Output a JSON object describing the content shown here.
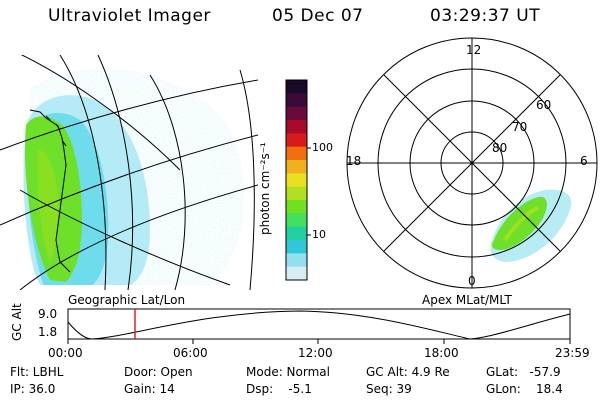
{
  "header": {
    "instrument": "Ultraviolet Imager",
    "date": "05 Dec 07",
    "time": "03:29:37 UT"
  },
  "geo_panel": {
    "label": "Geographic Lat/Lon"
  },
  "colorbar": {
    "unit_label": "photon cm⁻²s⁻¹",
    "ticks": [
      "100",
      "10"
    ],
    "colors": [
      "#1a0a2a",
      "#3a0a3a",
      "#6a0a3a",
      "#a80a2a",
      "#d81a1a",
      "#f07010",
      "#f0b020",
      "#e8e020",
      "#b0e020",
      "#70e020",
      "#40e060",
      "#20d0a0",
      "#30c8d8",
      "#90e0f0",
      "#d8ecf4"
    ]
  },
  "polar_panel": {
    "label": "Apex MLat/MLT",
    "mlt_labels": {
      "top": "12",
      "bottom": "0",
      "left": "18",
      "right": "6"
    },
    "mlat_labels": [
      "60",
      "70",
      "80"
    ]
  },
  "orbit_plot": {
    "ylabel": "GC Alt",
    "yticks": [
      "9.0",
      "1.8"
    ],
    "xticks": [
      "00:00",
      "06:00",
      "12:00",
      "18:00",
      "23:59"
    ],
    "marker_time": "03:29:37"
  },
  "info": {
    "flt": "Flt: LBHL",
    "ip": "IP: 36.0",
    "door": "Door: Open",
    "gain": "Gain: 14",
    "mode": "Mode: Normal",
    "dsp": "Dsp:    -5.1",
    "gcalt": "GC Alt: 4.9 Re",
    "seq": "Seq: 39",
    "glat": "GLat:   -57.9",
    "glon": "GLon:    18.4"
  }
}
